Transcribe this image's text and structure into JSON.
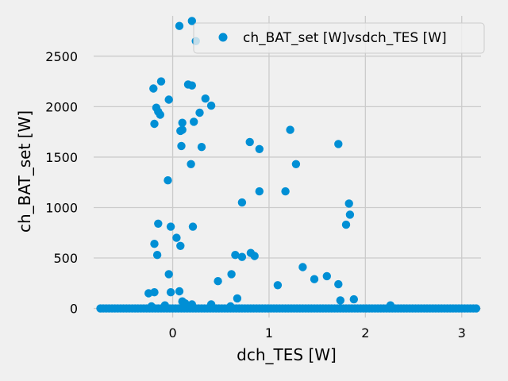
{
  "chart_data": {
    "type": "scatter",
    "title": "",
    "xlabel": "dch_TES [W]",
    "ylabel": "ch_BAT_set [W]",
    "xlim": [
      -0.82,
      3.2
    ],
    "ylim": [
      -90,
      2900
    ],
    "x_ticks": [
      {
        "value": 0,
        "label": "0"
      },
      {
        "value": 1,
        "label": "1"
      },
      {
        "value": 2,
        "label": "2"
      },
      {
        "value": 3,
        "label": "3"
      }
    ],
    "y_ticks": [
      {
        "value": 0,
        "label": "0"
      },
      {
        "value": 500,
        "label": "500"
      },
      {
        "value": 1000,
        "label": "1000"
      },
      {
        "value": 1500,
        "label": "1500"
      },
      {
        "value": 2000,
        "label": "2000"
      },
      {
        "value": 2500,
        "label": "2500"
      }
    ],
    "grid": true,
    "legend_position": "top-right",
    "colors": {
      "marker": "#008fd5",
      "grid": "#cbcbcb",
      "background": "#f0f0f0"
    },
    "series": [
      {
        "name": "ch_BAT_set [W]vsdch_TES [W]",
        "points": [
          [
            0.07,
            2800
          ],
          [
            0.2,
            2850
          ],
          [
            0.24,
            2650
          ],
          [
            -0.12,
            2250
          ],
          [
            0.16,
            2220
          ],
          [
            0.2,
            2210
          ],
          [
            -0.2,
            2180
          ],
          [
            0.34,
            2080
          ],
          [
            -0.04,
            2070
          ],
          [
            0.4,
            2010
          ],
          [
            -0.17,
            1990
          ],
          [
            -0.15,
            1950
          ],
          [
            -0.13,
            1920
          ],
          [
            0.28,
            1940
          ],
          [
            0.1,
            1840
          ],
          [
            0.22,
            1850
          ],
          [
            -0.19,
            1830
          ],
          [
            0.08,
            1760
          ],
          [
            0.1,
            1770
          ],
          [
            1.22,
            1770
          ],
          [
            0.8,
            1650
          ],
          [
            1.72,
            1630
          ],
          [
            0.09,
            1610
          ],
          [
            0.3,
            1600
          ],
          [
            0.9,
            1580
          ],
          [
            0.19,
            1430
          ],
          [
            1.28,
            1430
          ],
          [
            -0.05,
            1270
          ],
          [
            0.9,
            1160
          ],
          [
            1.17,
            1160
          ],
          [
            0.72,
            1050
          ],
          [
            1.83,
            1040
          ],
          [
            1.84,
            930
          ],
          [
            -0.15,
            840
          ],
          [
            1.8,
            830
          ],
          [
            -0.02,
            810
          ],
          [
            0.21,
            810
          ],
          [
            0.04,
            700
          ],
          [
            -0.19,
            640
          ],
          [
            0.08,
            620
          ],
          [
            -0.16,
            530
          ],
          [
            0.81,
            550
          ],
          [
            0.65,
            530
          ],
          [
            0.72,
            510
          ],
          [
            0.85,
            520
          ],
          [
            1.35,
            410
          ],
          [
            -0.04,
            340
          ],
          [
            0.61,
            340
          ],
          [
            1.6,
            320
          ],
          [
            1.47,
            290
          ],
          [
            0.47,
            270
          ],
          [
            1.72,
            240
          ],
          [
            1.09,
            230
          ],
          [
            0.07,
            170
          ],
          [
            -0.19,
            160
          ],
          [
            -0.25,
            150
          ],
          [
            -0.02,
            160
          ],
          [
            0.67,
            100
          ],
          [
            1.88,
            90
          ],
          [
            1.74,
            80
          ],
          [
            0.1,
            70
          ],
          [
            0.13,
            50
          ],
          [
            0.2,
            40
          ],
          [
            0.4,
            40
          ],
          [
            0.6,
            20
          ],
          [
            2.26,
            30
          ],
          [
            -0.22,
            20
          ],
          [
            -0.08,
            30
          ]
        ]
      }
    ]
  }
}
